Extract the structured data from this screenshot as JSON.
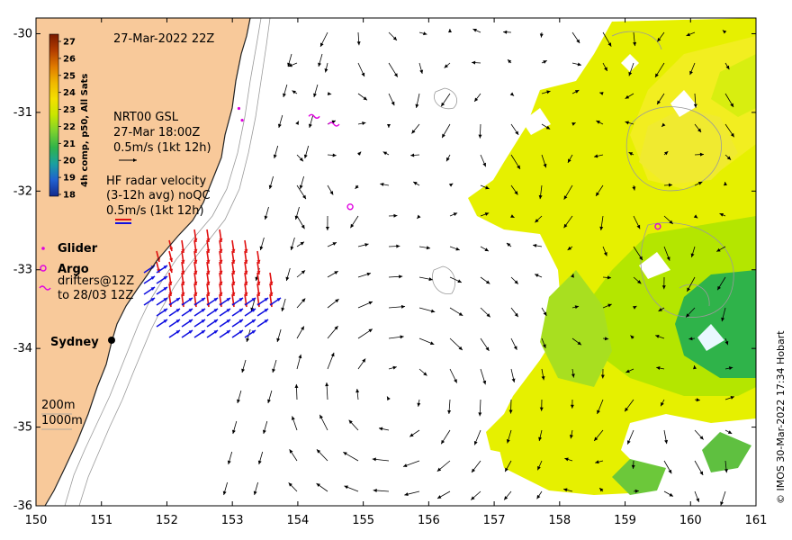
{
  "title": "27-Mar-2022 22Z",
  "colorbar": {
    "label": "4h comp, p50, All Sats",
    "ticks": [
      "27",
      "26",
      "25",
      "24",
      "23",
      "22",
      "21",
      "20",
      "19",
      "18"
    ],
    "colors": [
      "#7a1a00",
      "#b33d00",
      "#e07a00",
      "#f0b800",
      "#f4e000",
      "#c7e600",
      "#7cd12e",
      "#2fb34a",
      "#1aa0a0",
      "#2060d0",
      "#142a8c"
    ]
  },
  "legend": {
    "model_line1": "NRT00 GSL",
    "model_line2": "27-Mar 18:00Z",
    "model_line3": "0.5m/s (1kt 12h)",
    "radar_line1": "HF radar velocity",
    "radar_line2": "(3-12h avg) noQC",
    "radar_line3": "0.5m/s (1kt 12h)",
    "glider": "Glider",
    "argo": "Argo",
    "drifters_line1": "drifters@12Z",
    "drifters_line2": "to 28/03 12Z",
    "city": "Sydney",
    "depth_200": "200m",
    "depth_1000": "1000m"
  },
  "axes": {
    "x_ticks": [
      "150",
      "151",
      "152",
      "153",
      "154",
      "155",
      "156",
      "157",
      "158",
      "159",
      "160",
      "161"
    ],
    "y_ticks": [
      "-30",
      "-31",
      "-32",
      "-33",
      "-34",
      "-35",
      "-36"
    ],
    "x_range": [
      150,
      161
    ],
    "y_range": [
      -36,
      -29.8
    ]
  },
  "credit": "© IMOS 30-Mar-2022 17:34 Hobart",
  "colors": {
    "land": "#f8c99a",
    "radar_east": "#e01010",
    "radar_west": "#1010e0",
    "marker": "#e000e0",
    "contour": "#9a9a9a",
    "sst_high": "#e6f000",
    "sst_mid": "#b4e600",
    "sst_low": "#2fb34a"
  },
  "markers": {
    "argo": [
      [
        154.8,
        -32.2
      ],
      [
        159.5,
        -32.45
      ]
    ],
    "glider": [
      [
        153.1,
        -30.95
      ],
      [
        153.15,
        -31.1
      ]
    ],
    "drifters": [
      [
        154.25,
        -31.05
      ],
      [
        154.55,
        -31.15
      ]
    ]
  }
}
